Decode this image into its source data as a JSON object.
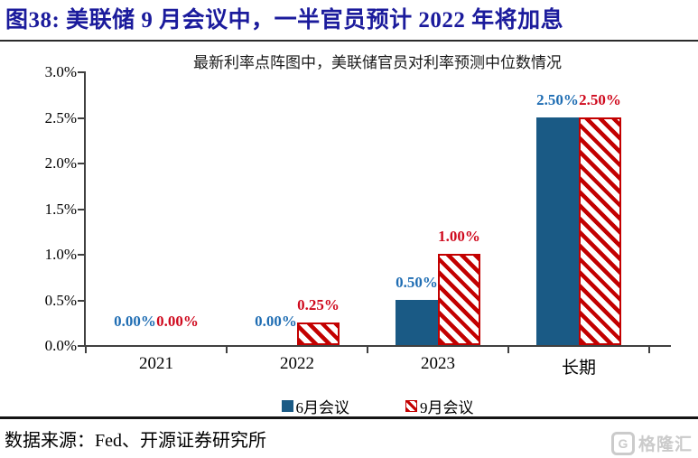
{
  "figure": {
    "title": "图38:  美联储 9 月会议中，一半官员预计 2022 年将加息"
  },
  "chart_data": {
    "type": "bar",
    "title": "最新利率点阵图中，美联储官员对利率预测中位数情况",
    "categories": [
      "2021",
      "2022",
      "2023",
      "长期"
    ],
    "series": [
      {
        "name": "6月会议",
        "values": [
          0.0,
          0.0,
          0.5,
          2.5
        ],
        "data_labels": [
          "0.00%",
          "0.00%",
          "0.50%",
          "2.50%"
        ],
        "bar_style": "solid",
        "color": "#1a5a85",
        "label_color": "#1f6db3"
      },
      {
        "name": "9月会议",
        "values": [
          0.0,
          0.25,
          1.0,
          2.5
        ],
        "data_labels": [
          "0.00%",
          "0.25%",
          "1.00%",
          "2.50%"
        ],
        "bar_style": "hatched",
        "color": "#c30000",
        "label_color": "#cf0a1e"
      }
    ],
    "xlabel": "",
    "ylabel": "",
    "ylim": [
      0,
      3.0
    ],
    "ytick_labels": [
      "0.0%",
      "0.5%",
      "1.0%",
      "1.5%",
      "2.0%",
      "2.5%",
      "3.0%"
    ],
    "grid": false,
    "legend_position": "bottom"
  },
  "footer": {
    "source": "数据来源：Fed、开源证券研究所",
    "watermark": "格隆汇"
  }
}
